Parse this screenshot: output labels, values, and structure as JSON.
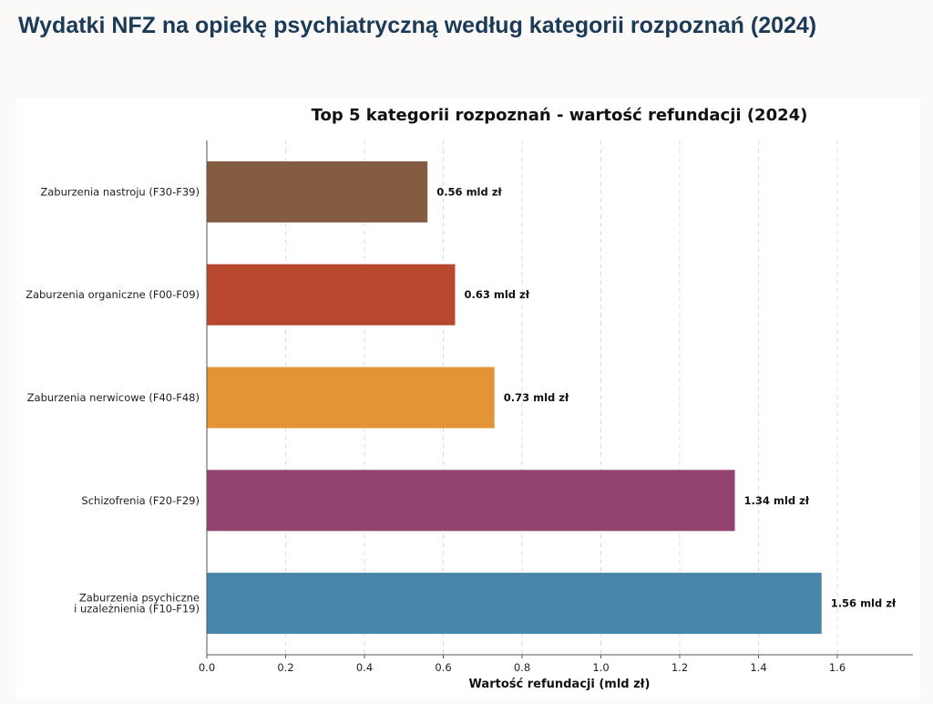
{
  "page": {
    "heading": "Wydatki NFZ na opiekę psychiatryczną według kategorii rozpoznań (2024)"
  },
  "colors": {
    "heading": "#1b3a57",
    "grid": "#dddddd",
    "axis": "#555555"
  },
  "chart_data": {
    "type": "bar",
    "orientation": "horizontal",
    "title": "Top 5 kategorii rozpoznań - wartość refundacji (2024)",
    "xlabel": "Wartość refundacji (mld zł)",
    "ylabel": "",
    "xlim": [
      0,
      1.8
    ],
    "xticks": [
      0.0,
      0.2,
      0.4,
      0.6,
      0.8,
      1.0,
      1.2,
      1.4,
      1.6
    ],
    "xtick_labels": [
      "0.0",
      "0.2",
      "0.4",
      "0.6",
      "0.8",
      "1.0",
      "1.2",
      "1.4",
      "1.6"
    ],
    "grid": "x-dashed",
    "categories": [
      "Zaburzenia nastroju (F30-F39)",
      "Zaburzenia organiczne (F00-F09)",
      "Zaburzenia nerwicowe (F40-F48)",
      "Schizofrenia (F20-F29)",
      "Zaburzenia psychiczne\ni uzależnienia (F10-F19)"
    ],
    "values": [
      0.56,
      0.63,
      0.73,
      1.34,
      1.56
    ],
    "value_labels": [
      "0.56 mld zł",
      "0.63 mld zł",
      "0.73 mld zł",
      "1.34 mld zł",
      "1.56 mld zł"
    ],
    "bar_colors": [
      "#845c42",
      "#b8482d",
      "#e39535",
      "#93436f",
      "#4885aa"
    ]
  }
}
